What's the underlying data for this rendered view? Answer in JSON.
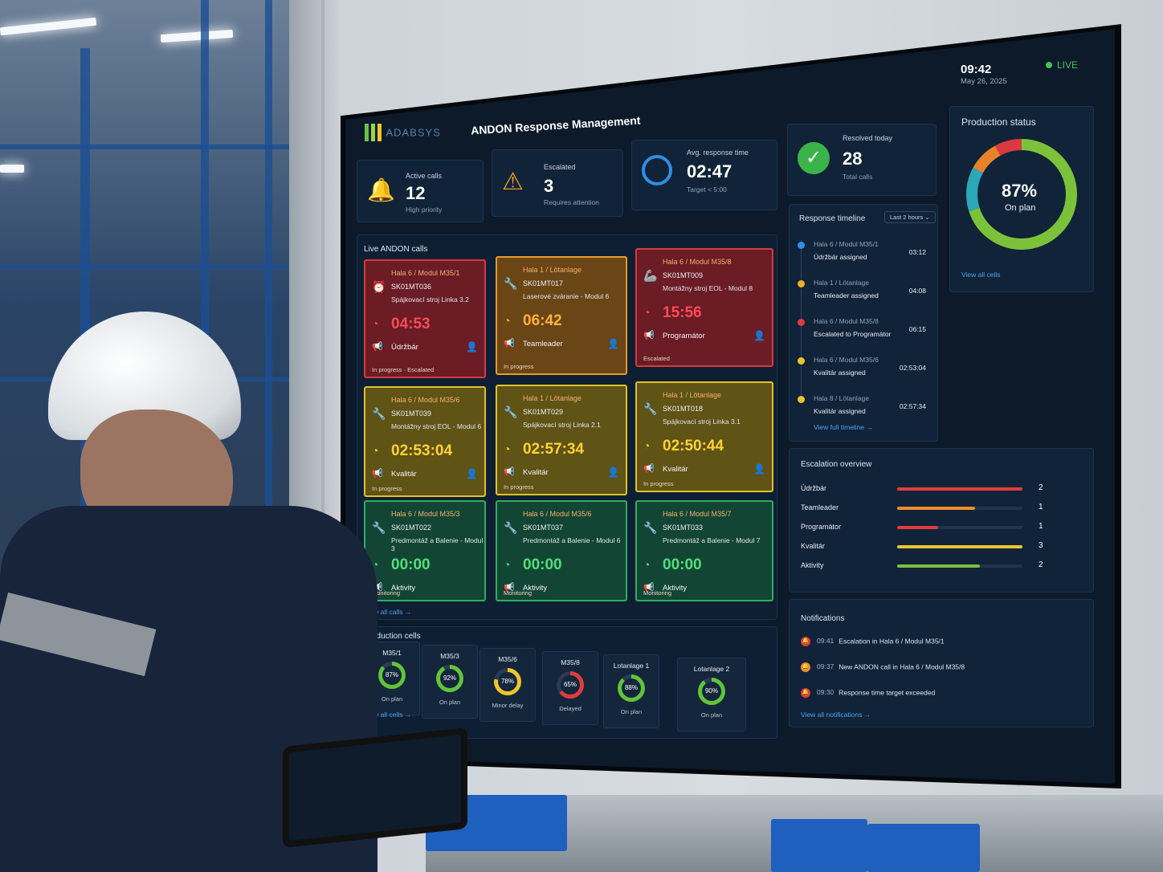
{
  "brand": {
    "logo_text": "ADABSYS",
    "app_title": "ANDON Response Management"
  },
  "header": {
    "time": "09:42",
    "date": "May 26, 2025",
    "live_label": "LIVE"
  },
  "kpis": [
    {
      "label": "Active calls",
      "value": "12",
      "sub": "High priority",
      "icon": "bell-icon",
      "color": "#e03a3e"
    },
    {
      "label": "Escalated",
      "value": "3",
      "sub": "Requires attention",
      "icon": "warning-icon",
      "color": "#f19a20"
    },
    {
      "label": "Avg. response time",
      "value": "02:47",
      "sub": "Target < 5:00",
      "icon": "clock-icon",
      "color": "#2f8ee6"
    },
    {
      "label": "Resolved today",
      "value": "28",
      "sub": "Total calls",
      "icon": "check-icon",
      "color": "#3ab44a"
    }
  ],
  "production_status": {
    "title": "Production status",
    "percent": "87%",
    "caption": "On plan",
    "link": "View all cells",
    "segments": [
      {
        "color": "#7bc23a",
        "fraction": 0.7
      },
      {
        "color": "#2aa8b8",
        "fraction": 0.13
      },
      {
        "color": "#e8822a",
        "fraction": 0.09
      },
      {
        "color": "#d83a40",
        "fraction": 0.08
      }
    ]
  },
  "live_calls": {
    "title": "Live ANDON calls",
    "link": "View all calls",
    "cards": [
      {
        "variant": "red",
        "location": "Hala 6 / Modul M35/1",
        "code": "SK01MT036",
        "desc": "Spájkovací stroj Linka 3.2",
        "timer": "04:53",
        "role": "Údržbár",
        "status": "In progress · Escalated",
        "timer_color": "#ff4b55",
        "icon": "alarm-icon"
      },
      {
        "variant": "orange",
        "location": "Hala 1 / Lötanlage",
        "code": "SK01MT017",
        "desc": "Laserové zváranie - Modul 6",
        "timer": "06:42",
        "role": "Teamleader",
        "status": "In progress",
        "timer_color": "#ffb13b",
        "icon": "wrench-icon"
      },
      {
        "variant": "red",
        "location": "Hala 6 / Modul M35/8",
        "code": "SK01MT009",
        "desc": "Montážny stroj EOL - Modul 8",
        "timer": "15:56",
        "role": "Programátor",
        "status": "Escalated",
        "timer_color": "#ff4b55",
        "icon": "robot-arm-icon"
      },
      {
        "variant": "yellow",
        "location": "Hala 6 / Modul M35/6",
        "code": "SK01MT039",
        "desc": "Montážny stroj EOL - Modul 6",
        "timer": "02:53:04",
        "role": "Kvalitár",
        "status": "In progress",
        "timer_color": "#ffd232",
        "icon": "wrench-icon"
      },
      {
        "variant": "yellow",
        "location": "Hala 1 / Lötanlage",
        "code": "SK01MT029",
        "desc": "Spájkovací stroj Linka 2.1",
        "timer": "02:57:34",
        "role": "Kvalitár",
        "status": "In progress",
        "timer_color": "#ffd232",
        "icon": "wrench-icon"
      },
      {
        "variant": "yellow",
        "location": "Hala 1 / Lötanlage",
        "code": "SK01MT018",
        "desc": "Spájkovací stroj Linka 3.1",
        "timer": "02:50:44",
        "role": "Kvalitár",
        "status": "In progress",
        "timer_color": "#ffd232",
        "icon": "wrench-icon"
      },
      {
        "variant": "green",
        "location": "Hala 6 / Modul M35/3",
        "code": "SK01MT022",
        "desc": "Predmontáž a Balenie - Modul 3",
        "timer": "00:00",
        "role": "Aktivity",
        "status": "Monitoring",
        "timer_color": "#4ee07a",
        "icon": "wrench-icon"
      },
      {
        "variant": "green",
        "location": "Hala 6 / Modul M35/6",
        "code": "SK01MT037",
        "desc": "Predmontáž a Balenie - Modul 6",
        "timer": "00:00",
        "role": "Aktivity",
        "status": "Monitoring",
        "timer_color": "#4ee07a",
        "icon": "wrench-icon"
      },
      {
        "variant": "green",
        "location": "Hala 6 / Modul M35/7",
        "code": "SK01MT033",
        "desc": "Predmontáž a Balenie - Modul 7",
        "timer": "00:00",
        "role": "Aktivity",
        "status": "Monitoring",
        "timer_color": "#4ee07a",
        "icon": "wrench-icon"
      }
    ]
  },
  "production_cells": {
    "title": "Production cells",
    "link": "View all cells",
    "cells": [
      {
        "name": "M35/1",
        "pct": "87%",
        "value": 0.87,
        "status": "On plan",
        "color": "#62c43a"
      },
      {
        "name": "M35/3",
        "pct": "92%",
        "value": 0.92,
        "status": "On plan",
        "color": "#62c43a"
      },
      {
        "name": "M35/6",
        "pct": "78%",
        "value": 0.78,
        "status": "Minor delay",
        "color": "#f0c52a"
      },
      {
        "name": "M35/8",
        "pct": "65%",
        "value": 0.65,
        "status": "Delayed",
        "color": "#e23c3c"
      },
      {
        "name": "Lotanlage 1",
        "pct": "88%",
        "value": 0.88,
        "status": "On plan",
        "color": "#62c43a"
      },
      {
        "name": "Lotanlage 2",
        "pct": "90%",
        "value": 0.9,
        "status": "On plan",
        "color": "#62c43a"
      }
    ]
  },
  "timeline": {
    "title": "Response timeline",
    "range": "Last 2 hours",
    "link": "View full timeline",
    "items": [
      {
        "where": "Hala 6 / Modul M35/1",
        "what": "Údržbár assigned",
        "time": "03:12",
        "color": "#2f8ee6"
      },
      {
        "where": "Hala 1 / Lötanlage",
        "what": "Teamleader assigned",
        "time": "04:08",
        "color": "#f0b020"
      },
      {
        "where": "Hala 6 / Modul M35/8",
        "what": "Escalated to Programátor",
        "time": "06:15",
        "color": "#e03a3e"
      },
      {
        "where": "Hala 6 / Modul M35/6",
        "what": "Kvalitár assigned",
        "time": "02:53:04",
        "color": "#f0c52a"
      },
      {
        "where": "Hala 8 / Lötanlage",
        "what": "Kvalitár assigned",
        "time": "02:57:34",
        "color": "#f0c52a"
      }
    ]
  },
  "escalation": {
    "title": "Escalation overview",
    "rows": [
      {
        "label": "Údržbár",
        "value": "2",
        "fill": 1.0,
        "color": "#e23c3c"
      },
      {
        "label": "Teamleader",
        "value": "1",
        "fill": 0.62,
        "color": "#f08c2a"
      },
      {
        "label": "Programátor",
        "value": "1",
        "fill": 0.33,
        "color": "#e23c3c"
      },
      {
        "label": "Kvalitár",
        "value": "3",
        "fill": 1.0,
        "color": "#f0c52a"
      },
      {
        "label": "Aktivity",
        "value": "2",
        "fill": 0.66,
        "color": "#7bc23a"
      }
    ]
  },
  "notifications": {
    "title": "Notifications",
    "link": "View all notifications",
    "items": [
      {
        "time": "09:41",
        "text": "Escalation in Hala 6 / Modul M35/1",
        "color": "#e03a3e"
      },
      {
        "time": "09:37",
        "text": "New ANDON call in Hala 6 / Modul M35/8",
        "color": "#f08c2a"
      },
      {
        "time": "09:30",
        "text": "Response time target exceeded",
        "color": "#e03a3e"
      }
    ]
  }
}
